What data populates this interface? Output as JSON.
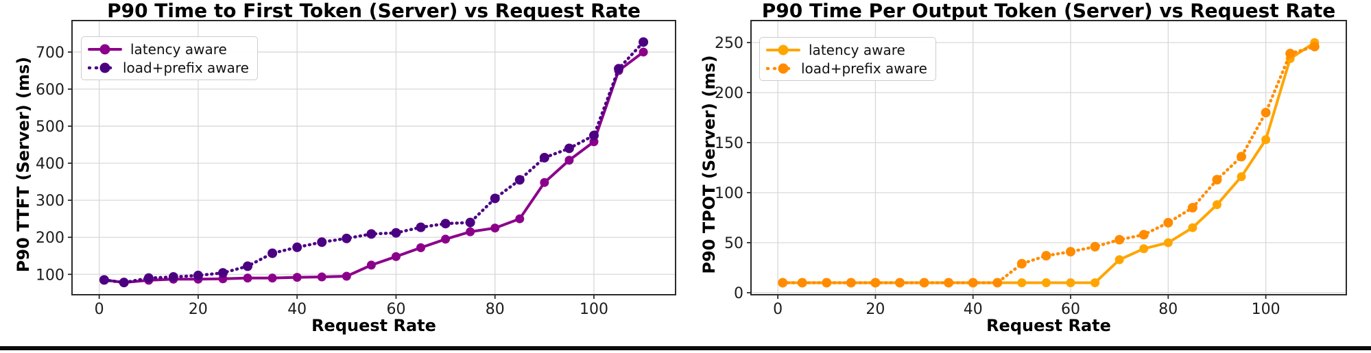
{
  "page": {
    "background_color": "#ffffff",
    "bottom_bar_color": "#0b0b0b"
  },
  "chart_data": [
    {
      "type": "line",
      "title": "P90 Time to First Token (Server) vs Request Rate",
      "xlabel": "Request Rate",
      "ylabel": "P90 TTFT (Server) (ms)",
      "grid": true,
      "legend_position": "upper left",
      "x": [
        1,
        5,
        10,
        15,
        20,
        25,
        30,
        35,
        40,
        45,
        50,
        55,
        60,
        65,
        70,
        75,
        80,
        85,
        90,
        95,
        100,
        105,
        110
      ],
      "xticks": [
        0,
        20,
        40,
        60,
        80,
        100
      ],
      "yticks": [
        100,
        200,
        300,
        400,
        500,
        600,
        700
      ],
      "xlim": [
        -5.5,
        116.5
      ],
      "ylim": [
        45,
        785
      ],
      "series": [
        {
          "name": "latency aware",
          "style": "solid",
          "color": "#8B008B",
          "values": [
            85,
            78,
            84,
            87,
            87,
            88,
            90,
            90,
            92,
            93,
            95,
            125,
            148,
            172,
            195,
            215,
            225,
            250,
            348,
            408,
            458,
            650,
            700
          ]
        },
        {
          "name": "load+prefix aware",
          "style": "dotted",
          "color": "#4B0082",
          "values": [
            85,
            78,
            90,
            93,
            97,
            104,
            122,
            157,
            173,
            187,
            197,
            209,
            212,
            227,
            237,
            240,
            305,
            355,
            415,
            440,
            475,
            655,
            727
          ]
        }
      ]
    },
    {
      "type": "line",
      "title": "P90 Time Per Output Token (Server) vs Request Rate",
      "xlabel": "Request Rate",
      "ylabel": "P90 TPOT (Server) (ms)",
      "grid": true,
      "legend_position": "upper left",
      "x": [
        1,
        5,
        10,
        15,
        20,
        25,
        30,
        35,
        40,
        45,
        50,
        55,
        60,
        65,
        70,
        75,
        80,
        85,
        90,
        95,
        100,
        105,
        110
      ],
      "xticks": [
        0,
        20,
        40,
        60,
        80,
        100
      ],
      "yticks": [
        0,
        50,
        100,
        150,
        200,
        250
      ],
      "xlim": [
        -5.5,
        116.5
      ],
      "ylim": [
        -2,
        272
      ],
      "series": [
        {
          "name": "latency aware",
          "style": "solid",
          "color": "#FFA500",
          "values": [
            10,
            10,
            10,
            10,
            10,
            10,
            10,
            10,
            10,
            10,
            10,
            10,
            10,
            10,
            33,
            44,
            50,
            65,
            88,
            116,
            153,
            234,
            250
          ]
        },
        {
          "name": "load+prefix aware",
          "style": "dotted",
          "color": "#FF8C00",
          "values": [
            10,
            10,
            10,
            10,
            10,
            10,
            10,
            10,
            10,
            10,
            29,
            37,
            41,
            46,
            53,
            58,
            70,
            85,
            113,
            136,
            180,
            239,
            246
          ]
        }
      ]
    }
  ]
}
